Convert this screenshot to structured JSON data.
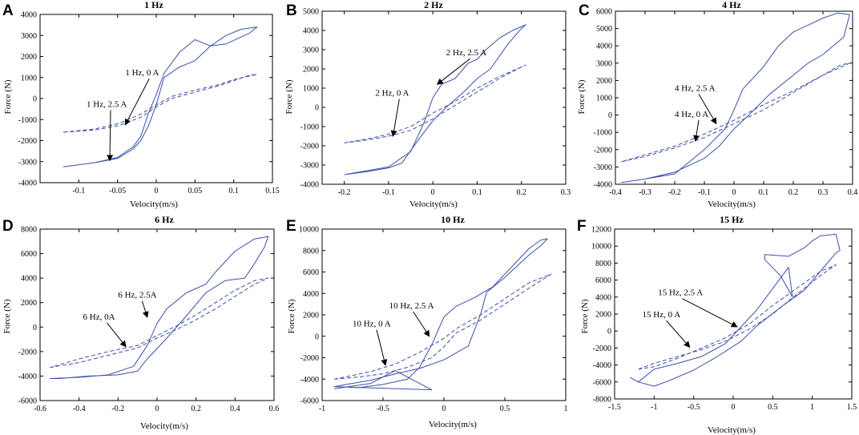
{
  "figure": {
    "line_color": "#3b4fa8",
    "panels": [
      "A",
      "B",
      "C",
      "D",
      "E",
      "F"
    ]
  },
  "chart_data": [
    {
      "type": "line",
      "letter": "A",
      "title": "1 Hz",
      "xlabel": "Velocity(m/s)",
      "ylabel": "Force (N)",
      "xlim": [
        -0.15,
        0.15
      ],
      "ylim": [
        -4000,
        4000
      ],
      "xticks": [
        "-0.1",
        "-0.05",
        "0",
        "0.05",
        "0.1",
        "0.15"
      ],
      "xtick_values": [
        -0.1,
        -0.05,
        0,
        0.05,
        0.1,
        0.15
      ],
      "yticks": [
        "-4000",
        "-3000",
        "-2000",
        "-1000",
        "0",
        "1000",
        "2000",
        "3000",
        "4000"
      ],
      "ytick_values": [
        -4000,
        -3000,
        -2000,
        -1000,
        0,
        1000,
        2000,
        3000,
        4000
      ],
      "series": [
        {
          "name": "1 Hz, 2.5 A",
          "style": "solid",
          "x": [
            -0.12,
            -0.08,
            -0.05,
            -0.03,
            -0.02,
            -0.01,
            0,
            0.01,
            0.03,
            0.05,
            0.07,
            0.09,
            0.11,
            0.13,
            0.12,
            0.09,
            0.07,
            0.05,
            0.03,
            0.01,
            0,
            -0.01,
            -0.02,
            -0.03,
            -0.05,
            -0.08,
            -0.12
          ],
          "y": [
            -3250,
            -3050,
            -2850,
            -2400,
            -2000,
            -1300,
            -300,
            1000,
            1500,
            1800,
            2500,
            3000,
            3300,
            3400,
            3100,
            2600,
            2500,
            2800,
            2200,
            1200,
            200,
            -700,
            -1800,
            -2300,
            -2800,
            -3050,
            -3250
          ]
        },
        {
          "name": "1 Hz, 0 A",
          "style": "dashed",
          "x": [
            -0.12,
            -0.08,
            -0.05,
            -0.02,
            0,
            0.02,
            0.05,
            0.08,
            0.1,
            0.12,
            0.13,
            0.1,
            0.08,
            0.05,
            0.02,
            0,
            -0.02,
            -0.05,
            -0.08,
            -0.12
          ],
          "y": [
            -1600,
            -1500,
            -1300,
            -900,
            -400,
            0,
            300,
            600,
            850,
            1100,
            1150,
            900,
            650,
            400,
            100,
            -300,
            -750,
            -1200,
            -1450,
            -1600
          ]
        }
      ],
      "annotations": [
        {
          "text": "1 Hz, 0 A",
          "x": -0.04,
          "y": 1100,
          "ax": -0.04,
          "ay": -1250
        },
        {
          "text": "1 Hz, 2.5 A",
          "x": -0.09,
          "y": -400,
          "ax": -0.06,
          "ay": -2950
        }
      ]
    },
    {
      "type": "line",
      "letter": "B",
      "title": "2 Hz",
      "xlabel": "Velocity(m/s)",
      "ylabel": "Force (N)",
      "xlim": [
        -0.25,
        0.3
      ],
      "ylim": [
        -4000,
        5000
      ],
      "xticks": [
        "-0.2",
        "-0.1",
        "0",
        "0.1",
        "0.2",
        "0.3"
      ],
      "xtick_values": [
        -0.2,
        -0.1,
        0,
        0.1,
        0.2,
        0.3
      ],
      "yticks": [
        "-4000",
        "-3000",
        "-2000",
        "-1000",
        "0",
        "1000",
        "2000",
        "3000",
        "4000",
        "5000"
      ],
      "ytick_values": [
        -4000,
        -3000,
        -2000,
        -1000,
        0,
        1000,
        2000,
        3000,
        4000,
        5000
      ],
      "series": [
        {
          "name": "2 Hz, 2.5 A",
          "style": "solid",
          "x": [
            -0.2,
            -0.15,
            -0.1,
            -0.05,
            -0.02,
            0,
            0.02,
            0.05,
            0.08,
            0.1,
            0.12,
            0.15,
            0.18,
            0.21,
            0.2,
            0.17,
            0.13,
            0.1,
            0.07,
            0.03,
            0,
            -0.03,
            -0.07,
            -0.1,
            -0.15,
            -0.2
          ],
          "y": [
            -3500,
            -3300,
            -3100,
            -2300,
            -800,
            500,
            1200,
            1500,
            2300,
            2500,
            3000,
            3600,
            4000,
            4300,
            4100,
            3300,
            2000,
            1500,
            800,
            0,
            -700,
            -1600,
            -2900,
            -3150,
            -3350,
            -3500
          ]
        },
        {
          "name": "2 Hz, 0 A",
          "style": "dashed",
          "x": [
            -0.2,
            -0.15,
            -0.1,
            -0.05,
            0,
            0.05,
            0.1,
            0.15,
            0.2,
            0.21,
            0.15,
            0.1,
            0.05,
            0,
            -0.05,
            -0.1,
            -0.15,
            -0.2
          ],
          "y": [
            -1850,
            -1700,
            -1500,
            -1200,
            -600,
            100,
            800,
            1500,
            2100,
            2200,
            1600,
            1000,
            300,
            -300,
            -1000,
            -1400,
            -1650,
            -1850
          ]
        }
      ],
      "annotations": [
        {
          "text": "2 Hz, 2.5 A",
          "x": 0.03,
          "y": 2700,
          "ax": 0.01,
          "ay": 1200
        },
        {
          "text": "2 Hz, 0 A",
          "x": -0.13,
          "y": 600,
          "ax": -0.09,
          "ay": -1500
        }
      ]
    },
    {
      "type": "line",
      "letter": "C",
      "title": "4 Hz",
      "xlabel": "Velocity(m/s)",
      "ylabel": "Force (N)",
      "xlim": [
        -0.4,
        0.4
      ],
      "ylim": [
        -4000,
        6000
      ],
      "xticks": [
        "-0.4",
        "-0.3",
        "-0.2",
        "-0.1",
        "0",
        "0.1",
        "0.2",
        "0.3",
        "0.4"
      ],
      "xtick_values": [
        -0.4,
        -0.3,
        -0.2,
        -0.1,
        0,
        0.1,
        0.2,
        0.3,
        0.4
      ],
      "yticks": [
        "-4000",
        "-3000",
        "-2000",
        "-1000",
        "0",
        "1000",
        "2000",
        "3000",
        "4000",
        "5000",
        "6000"
      ],
      "ytick_values": [
        -4000,
        -3000,
        -2000,
        -1000,
        0,
        1000,
        2000,
        3000,
        4000,
        5000,
        6000
      ],
      "series": [
        {
          "name": "4 Hz, 2.5 A",
          "style": "solid",
          "x": [
            -0.38,
            -0.3,
            -0.2,
            -0.1,
            -0.03,
            0,
            0.03,
            0.1,
            0.15,
            0.2,
            0.25,
            0.3,
            0.35,
            0.39,
            0.37,
            0.3,
            0.25,
            0.2,
            0.12,
            0.05,
            0,
            -0.05,
            -0.1,
            -0.2,
            -0.3,
            -0.38
          ],
          "y": [
            -3900,
            -3700,
            -3400,
            -2000,
            -800,
            300,
            1500,
            2800,
            4000,
            4800,
            5200,
            5600,
            5900,
            5800,
            4500,
            3500,
            3000,
            2300,
            1200,
            0,
            -800,
            -1800,
            -2500,
            -3300,
            -3700,
            -3900
          ]
        },
        {
          "name": "4 Hz, 0 A",
          "style": "dashed",
          "x": [
            -0.38,
            -0.3,
            -0.2,
            -0.1,
            0,
            0.1,
            0.2,
            0.3,
            0.36,
            0.39,
            0.3,
            0.2,
            0.1,
            0,
            -0.1,
            -0.2,
            -0.3,
            -0.38
          ],
          "y": [
            -2700,
            -2400,
            -1900,
            -1300,
            -500,
            300,
            1300,
            2300,
            2900,
            3000,
            2300,
            1400,
            600,
            -300,
            -1100,
            -1800,
            -2300,
            -2700
          ]
        }
      ],
      "annotations": [
        {
          "text": "4 Hz, 2.5 A",
          "x": -0.2,
          "y": 1400,
          "ax": -0.06,
          "ay": -500
        },
        {
          "text": "4 Hz, 0 A",
          "x": -0.2,
          "y": -100,
          "ax": -0.13,
          "ay": -1500
        }
      ]
    },
    {
      "type": "line",
      "letter": "D",
      "title": "6 Hz",
      "xlabel": "Velocity(m/s)",
      "ylabel": "Force (N)",
      "xlim": [
        -0.6,
        0.6
      ],
      "ylim": [
        -6000,
        8000
      ],
      "xticks": [
        "-0.6",
        "-0.4",
        "-0.2",
        "0",
        "0.2",
        "0.4",
        "0.6"
      ],
      "xtick_values": [
        -0.6,
        -0.4,
        -0.2,
        0,
        0.2,
        0.4,
        0.6
      ],
      "yticks": [
        "-6000",
        "-4000",
        "-2000",
        "0",
        "2000",
        "4000",
        "6000",
        "8000"
      ],
      "ytick_values": [
        -6000,
        -4000,
        -2000,
        0,
        2000,
        4000,
        6000,
        8000
      ],
      "series": [
        {
          "name": "6 Hz, 2.5A",
          "style": "solid",
          "x": [
            -0.55,
            -0.4,
            -0.25,
            -0.12,
            -0.05,
            0,
            0.05,
            0.15,
            0.25,
            0.3,
            0.4,
            0.5,
            0.57,
            0.55,
            0.5,
            0.45,
            0.35,
            0.25,
            0.15,
            0.05,
            -0.05,
            -0.1,
            -0.2,
            -0.35,
            -0.5,
            -0.55
          ],
          "y": [
            -4200,
            -4100,
            -3900,
            -3200,
            -1500,
            300,
            1500,
            2800,
            3500,
            4500,
            6200,
            7200,
            7400,
            6500,
            5200,
            4000,
            3800,
            2800,
            900,
            -900,
            -2600,
            -3600,
            -3900,
            -4000,
            -4200,
            -4200
          ]
        },
        {
          "name": "6 Hz, 0A",
          "style": "dashed",
          "x": [
            -0.55,
            -0.4,
            -0.25,
            -0.1,
            0,
            0.1,
            0.2,
            0.3,
            0.4,
            0.5,
            0.57,
            0.5,
            0.4,
            0.3,
            0.2,
            0.1,
            0,
            -0.1,
            -0.25,
            -0.4,
            -0.55
          ],
          "y": [
            -3300,
            -2900,
            -2300,
            -1700,
            -900,
            -200,
            600,
            1500,
            2500,
            3500,
            4000,
            3800,
            3000,
            2000,
            1000,
            100,
            -700,
            -1500,
            -2000,
            -2600,
            -3300
          ]
        }
      ],
      "annotations": [
        {
          "text": "6 Hz, 2.5A",
          "x": -0.2,
          "y": 2400,
          "ax": -0.05,
          "ay": 800
        },
        {
          "text": "6 Hz, 0A",
          "x": -0.38,
          "y": 600,
          "ax": -0.16,
          "ay": -1600
        }
      ]
    },
    {
      "type": "line",
      "letter": "E",
      "title": "10 Hz",
      "xlabel": "Velocity(m/s)",
      "ylabel": "Force (N)",
      "xlim": [
        -1,
        1
      ],
      "ylim": [
        -6000,
        10000
      ],
      "xticks": [
        "-1",
        "-0.5",
        "0",
        "0.5",
        "1"
      ],
      "xtick_values": [
        -1,
        -0.5,
        0,
        0.5,
        1
      ],
      "yticks": [
        "-6000",
        "-4000",
        "-2000",
        "0",
        "2000",
        "4000",
        "6000",
        "8000",
        "10000"
      ],
      "ytick_values": [
        -6000,
        -4000,
        -2000,
        0,
        2000,
        4000,
        6000,
        8000,
        10000
      ],
      "series": [
        {
          "name": "10 Hz, 2.5 A",
          "style": "solid",
          "x": [
            -0.9,
            -0.7,
            -0.5,
            -0.3,
            -0.2,
            -0.1,
            0,
            0.1,
            0.25,
            0.4,
            0.5,
            0.6,
            0.7,
            0.8,
            0.85,
            0.8,
            0.7,
            0.5,
            0.35,
            0.3,
            0.2,
            0,
            -0.2,
            -0.4,
            -0.6,
            -0.8,
            -0.9,
            -0.1,
            -0.4,
            -0.6,
            -0.9
          ],
          "y": [
            -4700,
            -4800,
            -4500,
            -4000,
            -2900,
            -800,
            1800,
            2800,
            3600,
            4600,
            5800,
            7000,
            8200,
            9000,
            9100,
            8500,
            7600,
            5500,
            4100,
            2000,
            -900,
            -2200,
            -3000,
            -3500,
            -4100,
            -4500,
            -4700,
            -5000,
            -3200,
            -4400,
            -4900
          ]
        },
        {
          "name": "10 Hz, 0 A",
          "style": "dashed",
          "x": [
            -0.9,
            -0.7,
            -0.5,
            -0.3,
            -0.1,
            0,
            0.1,
            0.3,
            0.5,
            0.7,
            0.88,
            0.7,
            0.5,
            0.3,
            0.1,
            0,
            -0.2,
            -0.4,
            -0.6,
            -0.9
          ],
          "y": [
            -4000,
            -3800,
            -3500,
            -2900,
            -2000,
            -1000,
            300,
            1500,
            3000,
            4500,
            5800,
            5000,
            3500,
            2000,
            700,
            -200,
            -1500,
            -2600,
            -3300,
            -4000
          ]
        }
      ],
      "annotations": [
        {
          "text": "10 Hz, 2.5 A",
          "x": -0.45,
          "y": 2600,
          "ax": -0.12,
          "ay": 0
        },
        {
          "text": "10 Hz, 0  A",
          "x": -0.75,
          "y": 900,
          "ax": -0.48,
          "ay": -2700
        }
      ]
    },
    {
      "type": "line",
      "letter": "F",
      "title": "15 Hz",
      "xlabel": "Velocity(m/s)",
      "ylabel": "Force (N)",
      "xlim": [
        -1.5,
        1.5
      ],
      "ylim": [
        -8000,
        12000
      ],
      "xticks": [
        "-1.5",
        "-1",
        "-0.5",
        "0",
        "0.5",
        "1",
        "1.5"
      ],
      "xtick_values": [
        -1.5,
        -1,
        -0.5,
        0,
        0.5,
        1,
        1.5
      ],
      "yticks": [
        "-8000",
        "-6000",
        "-4000",
        "-2000",
        "0",
        "2000",
        "4000",
        "6000",
        "8000",
        "10000",
        "12000"
      ],
      "ytick_values": [
        -8000,
        -6000,
        -4000,
        -2000,
        0,
        2000,
        4000,
        6000,
        8000,
        10000,
        12000
      ],
      "series": [
        {
          "name": "15 Hz, 2.5 A",
          "style": "solid",
          "x": [
            -1.2,
            -1.0,
            -0.7,
            -0.4,
            -0.1,
            0.1,
            0.3,
            0.5,
            0.7,
            0.75,
            0.6,
            0.4,
            0.4,
            0.7,
            0.9,
            1.0,
            1.1,
            1.3,
            1.35,
            1.3,
            1.1,
            0.9,
            0.6,
            0.3,
            0.1,
            -0.2,
            -0.5,
            -0.8,
            -1.0,
            -1.2,
            -1.3,
            -1.2
          ],
          "y": [
            -6000,
            -4500,
            -3800,
            -3000,
            -1500,
            500,
            2500,
            5000,
            7500,
            4000,
            6500,
            8400,
            9000,
            8800,
            9800,
            10600,
            11200,
            11400,
            9500,
            9200,
            7000,
            4800,
            2800,
            600,
            -1200,
            -3000,
            -4600,
            -5800,
            -6500,
            -6000,
            -5500,
            -6000
          ]
        },
        {
          "name": "15 Hz, 0 A",
          "style": "dashed",
          "x": [
            -1.2,
            -1.0,
            -0.7,
            -0.4,
            -0.1,
            0.2,
            0.5,
            0.8,
            1.1,
            1.3,
            1.1,
            0.8,
            0.5,
            0.2,
            -0.1,
            -0.4,
            -0.7,
            -1.0,
            -1.2
          ],
          "y": [
            -4500,
            -3800,
            -3000,
            -2200,
            -1200,
            200,
            2000,
            4300,
            6500,
            7800,
            7000,
            5000,
            3000,
            800,
            -800,
            -2000,
            -3200,
            -4200,
            -4500
          ]
        }
      ],
      "annotations": [
        {
          "text": "15 Hz, 2.5 A",
          "x": -0.95,
          "y": 4200,
          "ax": 0.05,
          "ay": 500
        },
        {
          "text": "15 Hz, 0 A",
          "x": -1.15,
          "y": 1600,
          "ax": -0.55,
          "ay": -1900
        }
      ]
    }
  ]
}
